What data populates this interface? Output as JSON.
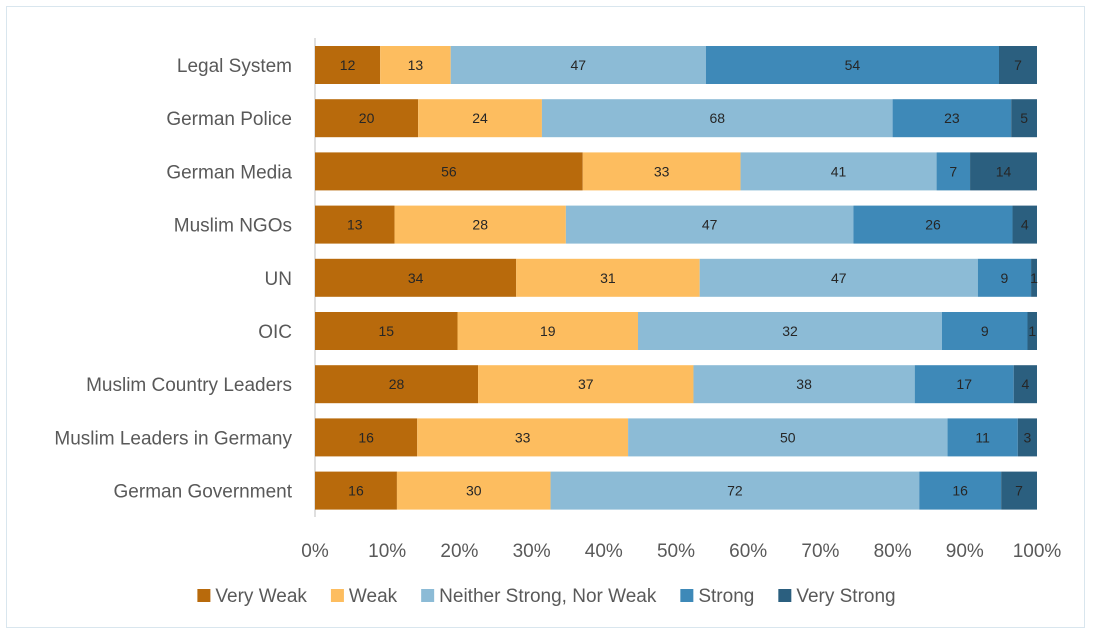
{
  "chart_data": {
    "type": "bar",
    "orientation": "horizontal",
    "stacking": "percent",
    "title": "",
    "xlabel": "",
    "ylabel": "",
    "xlim": [
      0,
      100
    ],
    "x_ticks": [
      "0%",
      "10%",
      "20%",
      "30%",
      "40%",
      "50%",
      "60%",
      "70%",
      "80%",
      "90%",
      "100%"
    ],
    "categories": [
      "Legal System",
      "German Police",
      "German Media",
      "Muslim NGOs",
      "UN",
      "OIC",
      "Muslim Country Leaders",
      "Muslim Leaders in Germany",
      "German Government"
    ],
    "series": [
      {
        "name": "Very Weak",
        "color": "#b86a0c",
        "values": [
          12,
          20,
          56,
          13,
          34,
          15,
          28,
          16,
          16
        ]
      },
      {
        "name": "Weak",
        "color": "#fdbd5f",
        "values": [
          13,
          24,
          33,
          28,
          31,
          19,
          37,
          33,
          30
        ]
      },
      {
        "name": "Neither Strong, Nor Weak",
        "color": "#8cbbd6",
        "values": [
          47,
          68,
          41,
          47,
          47,
          32,
          38,
          50,
          72
        ]
      },
      {
        "name": "Strong",
        "color": "#3e89b8",
        "values": [
          54,
          23,
          7,
          26,
          9,
          9,
          17,
          11,
          16
        ]
      },
      {
        "name": "Very Strong",
        "color": "#2b5f7f",
        "values": [
          7,
          5,
          14,
          4,
          1,
          1,
          4,
          3,
          7
        ]
      }
    ],
    "legend": "bottom",
    "grid": false,
    "data_labels": true
  }
}
